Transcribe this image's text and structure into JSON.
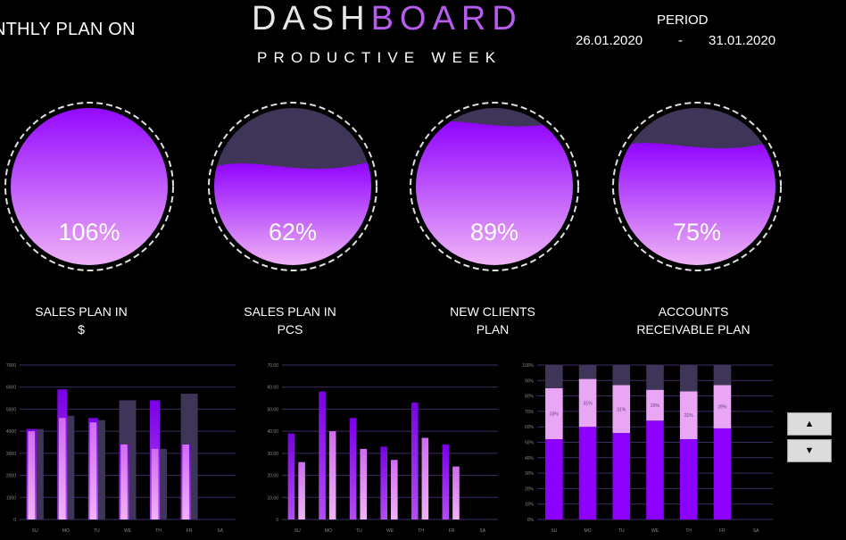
{
  "header": {
    "banner": "NTHLY PLAN ON",
    "title_part1": "DASH",
    "title_part2": "BOARD",
    "subtitle": "PRODUCTIVE WEEK",
    "period_label": "PERIOD",
    "period_from": "26.01.2020",
    "period_dash": "-",
    "period_to": "31.01.2020"
  },
  "colors": {
    "background": "#000000",
    "accent": "#8b00ff",
    "light_purple": "#e9a6f5",
    "muted": "#3e3558"
  },
  "kpis": [
    {
      "value_text": "106%",
      "fraction": 1.06,
      "label_line1": "SALES PLAN IN",
      "label_line2": "$"
    },
    {
      "value_text": "62%",
      "fraction": 0.62,
      "label_line1": "SALES PLAN IN",
      "label_line2": "PCS"
    },
    {
      "value_text": "89%",
      "fraction": 0.89,
      "label_line1": "NEW CLIENTS",
      "label_line2": "PLAN"
    },
    {
      "value_text": "75%",
      "fraction": 0.75,
      "label_line1": "ACCOUNTS",
      "label_line2": "RECEIVABLE PLAN"
    }
  ],
  "chart_data": [
    {
      "type": "bar",
      "categories": [
        "SU",
        "MO",
        "TU",
        "WE",
        "TH",
        "FR",
        "SA"
      ],
      "yticks": [
        "0",
        "1000",
        "2000",
        "3000",
        "4000",
        "5000",
        "6000",
        "7000"
      ],
      "ylim": [
        0,
        7000
      ],
      "series": [
        {
          "values": [
            4100,
            4700,
            4500,
            5400,
            3200,
            5700,
            0
          ]
        },
        {
          "values": [
            4100,
            5900,
            4600,
            3400,
            5400,
            3400,
            0
          ]
        },
        {
          "values": [
            4000,
            4600,
            4400,
            3400,
            3200,
            3400,
            0
          ]
        }
      ]
    },
    {
      "type": "bar",
      "categories": [
        "SU",
        "MO",
        "TU",
        "WE",
        "TH",
        "FR",
        "SA"
      ],
      "yticks": [
        "0",
        "10.00",
        "20.00",
        "30.00",
        "40.00",
        "50.00",
        "60.00",
        "70.00"
      ],
      "ylim": [
        0,
        70
      ],
      "series": [
        {
          "values": [
            39,
            58,
            46,
            33,
            53,
            34,
            0
          ]
        },
        {
          "values": [
            26,
            40,
            32,
            27,
            37,
            24,
            0
          ]
        }
      ]
    },
    {
      "type": "bar",
      "stacked": true,
      "categories": [
        "SU",
        "MO",
        "TU",
        "WE",
        "TH",
        "FR",
        "SA"
      ],
      "yticks": [
        "0%",
        "10%",
        "20%",
        "30%",
        "40%",
        "50%",
        "60%",
        "70%",
        "80%",
        "90%",
        "100%"
      ],
      "ylim": [
        0,
        100
      ],
      "series": [
        {
          "values": [
            52,
            60,
            56,
            64,
            52,
            59,
            0
          ]
        },
        {
          "values": [
            33,
            31,
            31,
            20,
            31,
            28,
            0
          ]
        },
        {
          "values": [
            15,
            9,
            13,
            16,
            17,
            13,
            0
          ]
        }
      ],
      "data_labels": [
        "33%",
        "31%",
        "31%",
        "20%",
        "31%",
        "28%",
        ""
      ]
    }
  ],
  "spinner": {
    "up_label": "▲",
    "down_label": "▼"
  }
}
